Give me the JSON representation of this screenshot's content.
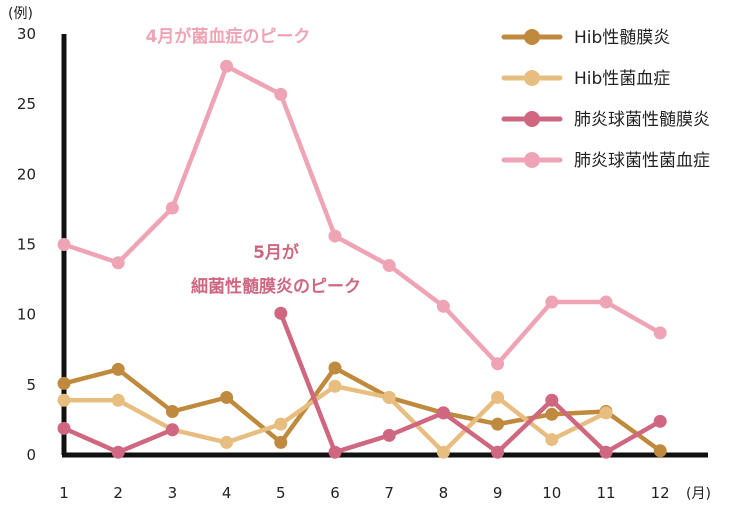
{
  "chart_data": {
    "type": "line",
    "y_unit": "(例)",
    "x_unit": "(月)",
    "categories": [
      "1",
      "2",
      "3",
      "4",
      "5",
      "6",
      "7",
      "8",
      "9",
      "10",
      "11",
      "12"
    ],
    "ylim": [
      0,
      30
    ],
    "yticks": [
      0,
      5,
      10,
      15,
      20,
      25,
      30
    ],
    "grid": false,
    "legend_position": "top-right",
    "series": [
      {
        "name": "Hib性髄膜炎",
        "color": "#c08a3e",
        "values": [
          5.1,
          6.1,
          3.1,
          4.1,
          0.9,
          6.2,
          4.1,
          3.0,
          2.2,
          2.9,
          3.1,
          0.3
        ]
      },
      {
        "name": "Hib性菌血症",
        "color": "#e8bd80",
        "values": [
          3.9,
          3.9,
          1.8,
          0.9,
          2.2,
          4.9,
          4.1,
          0.2,
          4.1,
          1.1,
          3.0,
          null
        ]
      },
      {
        "name": "肺炎球菌性髄膜炎",
        "color": "#cf6781",
        "values": [
          1.9,
          0.2,
          1.8,
          null,
          10.1,
          0.2,
          1.4,
          3.0,
          0.2,
          3.9,
          0.2,
          2.4
        ]
      },
      {
        "name": "肺炎球菌性菌血症",
        "color": "#efa4b5",
        "values": [
          15.0,
          13.7,
          17.6,
          27.7,
          25.7,
          15.6,
          13.5,
          10.6,
          6.5,
          10.9,
          10.9,
          8.7
        ]
      }
    ],
    "annotations": [
      {
        "text": "4月が菌血症のピーク",
        "color": "#efa4b5"
      },
      {
        "text": "5月が",
        "color": "#cf6781"
      },
      {
        "text": "細菌性髄膜炎のピーク",
        "color": "#cf6781"
      }
    ]
  }
}
